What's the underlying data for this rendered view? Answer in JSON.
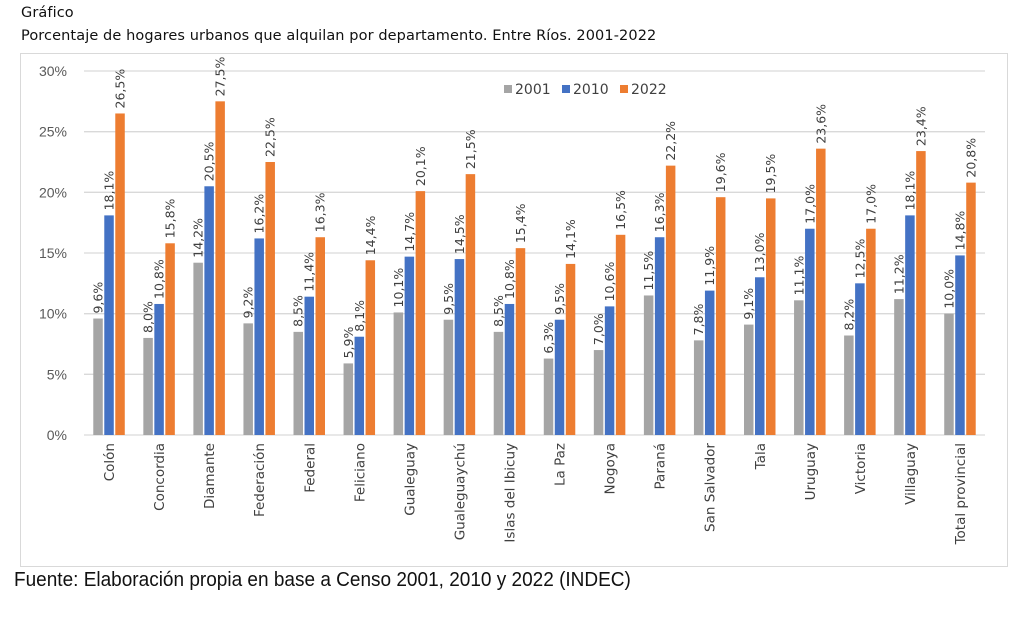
{
  "header": {
    "title": "Gráfico",
    "subtitle": "Porcentaje de hogares urbanos que alquilan por departamento. Entre Ríos. 2001-2022"
  },
  "footer": {
    "source": "Fuente: Elaboración propia en base a Censo 2001, 2010 y 2022 (INDEC)"
  },
  "chart_data": {
    "type": "bar",
    "title": "Porcentaje de hogares urbanos que alquilan por departamento. Entre Ríos. 2001-2022",
    "xlabel": "",
    "ylabel": "",
    "ylim": [
      0,
      30
    ],
    "yticks": [
      0,
      5,
      10,
      15,
      20,
      25,
      30
    ],
    "ytick_labels": [
      "0%",
      "5%",
      "10%",
      "15%",
      "20%",
      "25%",
      "30%"
    ],
    "grid": true,
    "legend_position": "top-center",
    "categories": [
      "Colón",
      "Concordia",
      "Diamante",
      "Federación",
      "Federal",
      "Feliciano",
      "Gualeguay",
      "Gualeguaychú",
      "Islas del Ibicuy",
      "La Paz",
      "Nogoya",
      "Paraná",
      "San Salvador",
      "Tala",
      "Uruguay",
      "Victoria",
      "Villaguay",
      "Total provincial"
    ],
    "series": [
      {
        "name": "2001",
        "color": "#a5a5a5",
        "values": [
          9.6,
          8.0,
          14.2,
          9.2,
          8.5,
          5.9,
          10.1,
          9.5,
          8.5,
          6.3,
          7.0,
          11.5,
          7.8,
          9.1,
          11.1,
          8.2,
          11.2,
          10.0
        ],
        "labels": [
          "9,6%",
          "8,0%",
          "14,2%",
          "9,2%",
          "8,5%",
          "5,9%",
          "10,1%",
          "9,5%",
          "8,5%",
          "6,3%",
          "7,0%",
          "11,5%",
          "7,8%",
          "9,1%",
          "11,1%",
          "8,2%",
          "11,2%",
          "10,0%"
        ]
      },
      {
        "name": "2010",
        "color": "#4472c4",
        "values": [
          18.1,
          10.8,
          20.5,
          16.2,
          11.4,
          8.1,
          14.7,
          14.5,
          10.8,
          9.5,
          10.6,
          16.3,
          11.9,
          13.0,
          17.0,
          12.5,
          18.1,
          14.8
        ],
        "labels": [
          "18,1%",
          "10,8%",
          "20,5%",
          "16,2%",
          "11,4%",
          "8,1%",
          "14,7%",
          "14,5%",
          "10,8%",
          "9,5%",
          "10,6%",
          "16,3%",
          "11,9%",
          "13,0%",
          "17,0%",
          "12,5%",
          "18,1%",
          "14,8%"
        ]
      },
      {
        "name": "2022",
        "color": "#ed7d31",
        "values": [
          26.5,
          15.8,
          27.5,
          22.5,
          16.3,
          14.4,
          20.1,
          21.5,
          15.4,
          14.1,
          16.5,
          22.2,
          19.6,
          19.5,
          23.6,
          17.0,
          23.4,
          20.8
        ],
        "labels": [
          "26,5%",
          "15,8%",
          "27,5%",
          "22,5%",
          "16,3%",
          "14,4%",
          "20,1%",
          "21,5%",
          "15,4%",
          "14,1%",
          "16,5%",
          "22,2%",
          "19,6%",
          "19,5%",
          "23,6%",
          "17,0%",
          "23,4%",
          "20,8%"
        ]
      }
    ]
  }
}
